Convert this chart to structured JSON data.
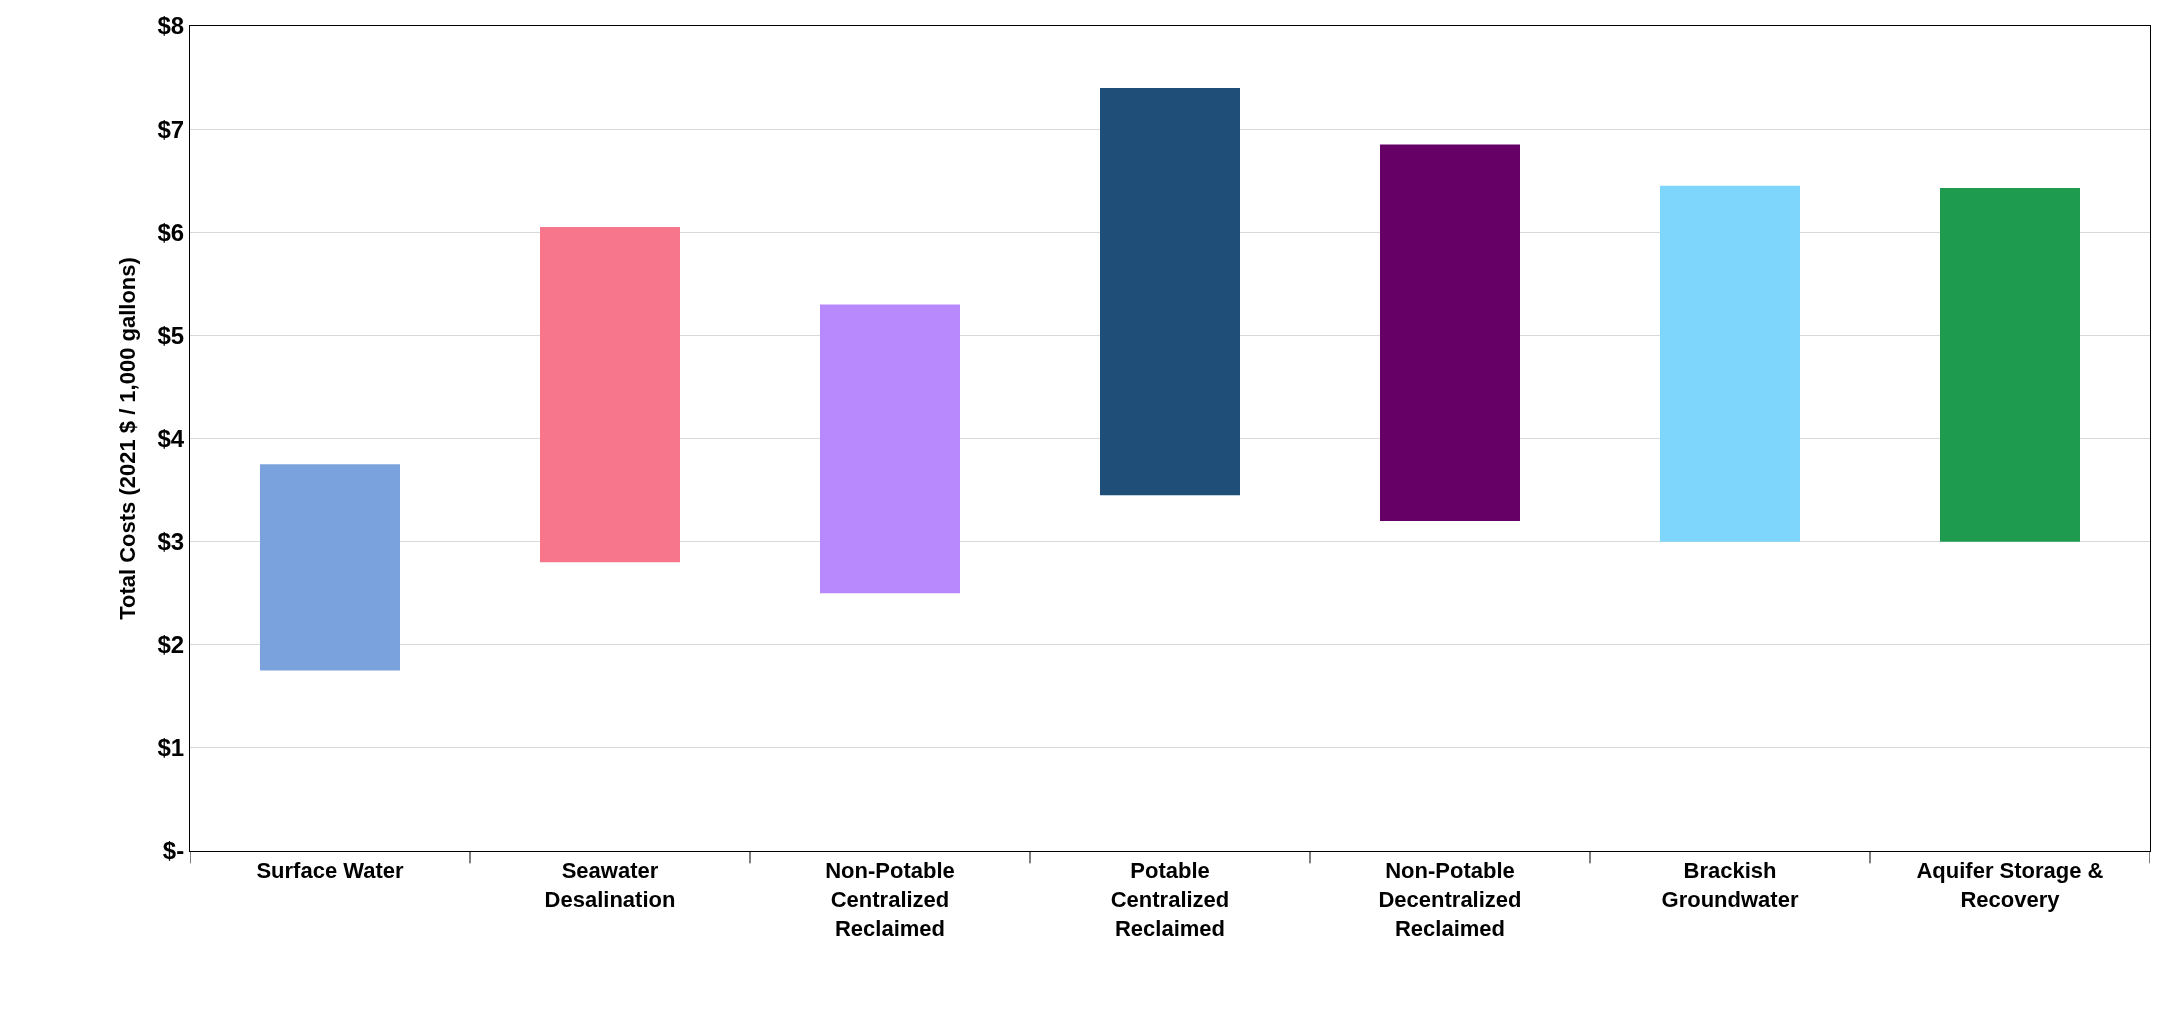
{
  "chart_data": {
    "type": "bar",
    "ylabel": "Total Costs (2021 $ / 1,000 gallons)",
    "categories": [
      "Surface Water",
      "Seawater Desalination",
      "Non-Potable Centralized Reclaimed",
      "Potable Centralized Reclaimed",
      "Non-Potable Decentralized Reclaimed",
      "Brackish Groundwater",
      "Aquifer Storage & Recovery"
    ],
    "base": [
      1.75,
      2.8,
      2.5,
      3.45,
      3.2,
      3.0,
      3.0
    ],
    "values": [
      2.0,
      3.25,
      2.8,
      3.95,
      3.65,
      3.45,
      3.43
    ],
    "colors": [
      "#7aa3de",
      "#f7768c",
      "#b888fd",
      "#1f4e79",
      "#660066",
      "#7fd6fd",
      "#1f9b50"
    ],
    "ylim": [
      0,
      8
    ],
    "yticks": [
      {
        "value": 0,
        "label": "$-"
      },
      {
        "value": 1,
        "label": "$1"
      },
      {
        "value": 2,
        "label": "$2"
      },
      {
        "value": 3,
        "label": "$3"
      },
      {
        "value": 4,
        "label": "$4"
      },
      {
        "value": 5,
        "label": "$5"
      },
      {
        "value": 6,
        "label": "$6"
      },
      {
        "value": 7,
        "label": "$7"
      },
      {
        "value": 8,
        "label": "$8"
      }
    ],
    "grid": "y"
  }
}
